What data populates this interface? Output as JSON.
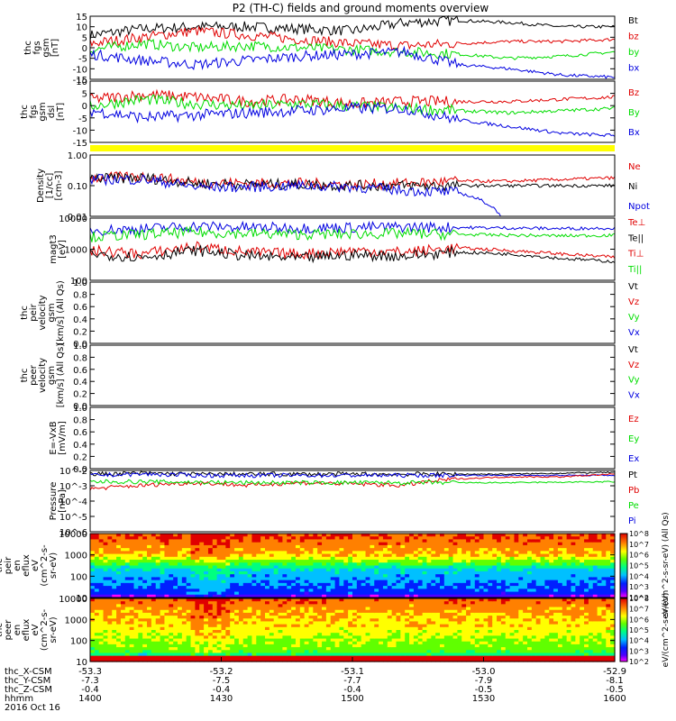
{
  "title": "P2 (TH-C) fields and ground moments overview",
  "colors": {
    "black": "#000000",
    "red": "#e00000",
    "green": "#00dd00",
    "blue": "#0000e0",
    "yellow": "#ffff00"
  },
  "colorbar": {
    "ticks": [
      "10^2",
      "10^3",
      "10^4",
      "10^5",
      "10^6",
      "10^7",
      "10^8"
    ],
    "label_ion": "eV/(cm^2-s-sr-eV) (All Qs)",
    "label_electron": "eV/(cm^2-s-sr-eV)"
  },
  "x_axis": {
    "ticks": [
      {
        "x": "-53.3",
        "y": "-7.3",
        "z": "-0.4",
        "t": "1400"
      },
      {
        "x": "-53.2",
        "y": "-7.5",
        "z": "-0.4",
        "t": "1430"
      },
      {
        "x": "-53.1",
        "y": "-7.7",
        "z": "-0.4",
        "t": "1500"
      },
      {
        "x": "-53.0",
        "y": "-7.9",
        "z": "-0.5",
        "t": "1530"
      },
      {
        "x": "-52.9",
        "y": "-8.1",
        "z": "-0.5",
        "t": "1600"
      }
    ],
    "row_labels": [
      "thc_X-CSM",
      "thc_Y-CSM",
      "thc_Z-CSM",
      "hhmm"
    ],
    "date": "2016 Oct 16"
  },
  "chart_data": [
    {
      "type": "line",
      "ylabel": [
        "thc",
        "fgs",
        "gsm",
        "[nT]"
      ],
      "ylim": [
        -15,
        15
      ],
      "yticks": [
        "15",
        "10",
        "5",
        "0",
        "-5",
        "-10",
        "-15"
      ],
      "legend": [
        "Bt",
        "bz",
        "by",
        "bx"
      ],
      "series": [
        {
          "name": "Bt",
          "color": "black",
          "base": [
            6,
            9,
            10,
            10,
            9,
            8,
            12,
            13,
            12,
            10,
            10
          ]
        },
        {
          "name": "bz",
          "color": "red",
          "base": [
            2,
            5,
            8,
            6,
            4,
            2,
            1,
            2,
            3,
            3,
            4
          ]
        },
        {
          "name": "by",
          "color": "green",
          "base": [
            -1,
            2,
            0,
            1,
            0,
            -1,
            -2,
            -3,
            -5,
            -4,
            -2
          ]
        },
        {
          "name": "bx",
          "color": "blue",
          "base": [
            -3,
            -6,
            -8,
            -6,
            -4,
            -3,
            -2,
            -8,
            -10,
            -13,
            -14
          ]
        }
      ]
    },
    {
      "type": "line",
      "ylabel": [
        "thc",
        "fgs",
        "gsm",
        "dsl",
        "[nT]"
      ],
      "ylim": [
        -17,
        10
      ],
      "yticks": [
        "10",
        "5",
        "0",
        "-5",
        "-10",
        "-15"
      ],
      "legend": [
        "Bz",
        "By",
        "Bx"
      ],
      "series": [
        {
          "name": "Bz",
          "color": "red",
          "base": [
            2,
            4,
            3,
            1,
            2,
            0,
            1,
            1,
            1,
            2,
            3
          ]
        },
        {
          "name": "By",
          "color": "green",
          "base": [
            -1,
            2,
            0,
            -1,
            0,
            -1,
            -2,
            -3,
            -4,
            -3,
            -2
          ]
        },
        {
          "name": "Bx",
          "color": "blue",
          "base": [
            -3,
            -6,
            -5,
            -4,
            -3,
            -2,
            -2,
            -7,
            -10,
            -13,
            -14
          ]
        }
      ]
    },
    {
      "type": "line",
      "ylabel": [
        "Density",
        "[1/cc]",
        "[cm-3]"
      ],
      "yscale": "log",
      "ylim": [
        0.01,
        1
      ],
      "yticks": [
        "1.00",
        "0.10",
        "0.01"
      ],
      "legend": [
        "Ne",
        "Ni",
        "Npot"
      ],
      "series": [
        {
          "name": "Ne",
          "color": "red",
          "base": [
            0.18,
            0.2,
            0.13,
            0.12,
            0.12,
            0.11,
            0.12,
            0.14,
            0.14,
            0.16,
            0.18
          ]
        },
        {
          "name": "Ni",
          "color": "black",
          "base": [
            0.17,
            0.18,
            0.12,
            0.11,
            0.11,
            0.1,
            0.1,
            0.1,
            0.1,
            0.1,
            0.1
          ]
        },
        {
          "name": "Npot",
          "color": "blue",
          "base": [
            0.16,
            0.16,
            0.09,
            0.09,
            0.1,
            0.09,
            0.07,
            0.06,
            0.0,
            0.0,
            0.0
          ]
        }
      ]
    },
    {
      "type": "line",
      "ylabel": [
        "magt3",
        "[eV]"
      ],
      "yscale": "log",
      "ylim": [
        100,
        10000
      ],
      "yticks": [
        "10000",
        "1000",
        "100"
      ],
      "legend": [
        "Te⊥",
        "Te||",
        "Ti⊥",
        "Ti||"
      ],
      "series": [
        {
          "name": "Ti||",
          "color": "blue",
          "base": [
            4000,
            4500,
            5500,
            5000,
            4800,
            5000,
            5200,
            5000,
            4800,
            4600,
            4800
          ]
        },
        {
          "name": "Ti⊥",
          "color": "green",
          "base": [
            2500,
            3000,
            3500,
            3200,
            3000,
            3100,
            3200,
            3000,
            2800,
            2700,
            2800
          ]
        },
        {
          "name": "Te⊥",
          "color": "red",
          "base": [
            900,
            700,
            1200,
            800,
            700,
            900,
            800,
            1100,
            900,
            700,
            550
          ]
        },
        {
          "name": "Te||",
          "color": "black",
          "base": [
            700,
            550,
            900,
            600,
            500,
            650,
            600,
            800,
            700,
            500,
            400
          ]
        }
      ]
    },
    {
      "type": "line",
      "ylabel": [
        "thc",
        "peir",
        "velocity",
        "gsm",
        "[km/s] (All Qs)"
      ],
      "ylim": [
        0,
        1
      ],
      "yticks": [
        "1.0",
        "0.8",
        "0.6",
        "0.4",
        "0.2",
        "0.0"
      ],
      "legend": [
        "Vt",
        "Vz",
        "Vy",
        "Vx"
      ],
      "series": []
    },
    {
      "type": "line",
      "ylabel": [
        "thc",
        "peer",
        "velocity",
        "gsm",
        "[km/s] (All Qs)"
      ],
      "ylim": [
        0,
        1
      ],
      "yticks": [
        "1.0",
        "0.8",
        "0.6",
        "0.4",
        "0.2",
        "0.0"
      ],
      "legend": [
        "Vt",
        "Vz",
        "Vy",
        "Vx"
      ],
      "series": []
    },
    {
      "type": "line",
      "ylabel": [
        "E=-VxB",
        "[mV/m]"
      ],
      "ylim": [
        0,
        1
      ],
      "yticks": [
        "1.0",
        "0.8",
        "0.6",
        "0.4",
        "0.2",
        "0.0"
      ],
      "legend": [
        "Ez",
        "Ey",
        "Ex"
      ],
      "series": []
    },
    {
      "type": "line",
      "ylabel": [
        "Pressure",
        "[nPa]"
      ],
      "yscale": "log",
      "ylim": [
        1e-06,
        0.1
      ],
      "yticks": [
        "10^-2",
        "10^-3",
        "10^-4",
        "10^-5",
        "10^-6"
      ],
      "legend": [
        "Pt",
        "Pb",
        "Pe",
        "Pi"
      ],
      "series": [
        {
          "name": "Pt",
          "color": "black",
          "base": [
            0.05,
            0.06,
            0.05,
            0.05,
            0.05,
            0.05,
            0.05,
            0.05,
            0.05,
            0.06,
            0.07
          ]
        },
        {
          "name": "Pi",
          "color": "blue",
          "base": [
            0.04,
            0.05,
            0.04,
            0.04,
            0.04,
            0.04,
            0.04,
            0.04,
            0.04,
            0.04,
            0.04
          ]
        },
        {
          "name": "Pb",
          "color": "red",
          "base": [
            0.003,
            0.006,
            0.01,
            0.006,
            0.01,
            0.008,
            0.006,
            0.02,
            0.03,
            0.03,
            0.05
          ]
        },
        {
          "name": "Pe",
          "color": "green",
          "base": [
            0.012,
            0.012,
            0.011,
            0.01,
            0.01,
            0.01,
            0.01,
            0.01,
            0.01,
            0.011,
            0.012
          ]
        }
      ]
    },
    {
      "type": "heatmap",
      "ylabel": [
        "thc",
        "peir",
        "en",
        "eflux",
        "eV",
        "(cm^2-s-",
        "sr-eV)"
      ],
      "yscale": "log",
      "ylim": [
        5,
        20000
      ],
      "yticks": [
        "10000",
        "1000",
        "100",
        "10"
      ]
    },
    {
      "type": "heatmap",
      "ylabel": [
        "thc",
        "peer",
        "en",
        "eflux",
        "eV",
        "(cm^2-s-",
        "sr-eV)"
      ],
      "yscale": "log",
      "ylim": [
        5,
        20000
      ],
      "yticks": [
        "10000",
        "1000",
        "100",
        "10"
      ]
    }
  ]
}
